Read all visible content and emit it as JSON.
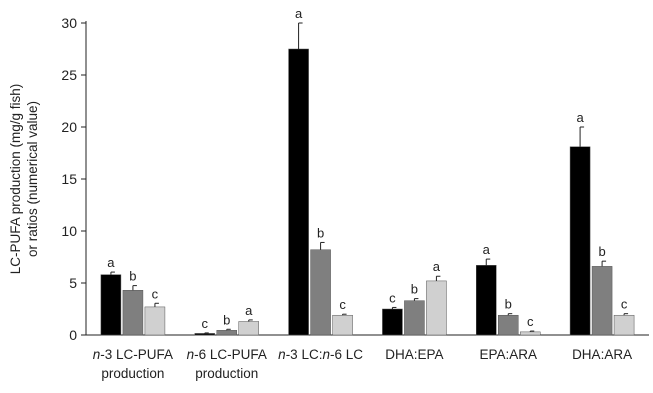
{
  "chart_data": {
    "type": "bar",
    "ylabel_lines": [
      "LC-PUFA production (mg/g fish)",
      "or ratios (numerical value)"
    ],
    "ylim": [
      0,
      30
    ],
    "yticks": [
      0,
      5,
      10,
      15,
      20,
      25,
      30
    ],
    "categories": [
      {
        "prefix": "n",
        "line1": "-3 LC-PUFA",
        "line2": "production"
      },
      {
        "prefix": "n",
        "line1": "-6 LC-PUFA",
        "line2": "production"
      },
      {
        "prefix": "n",
        "line1": "-3 LC:",
        "prefix2": "n",
        "line1b": "-6 LC",
        "line2": ""
      },
      {
        "prefix": "",
        "line1": "DHA:EPA",
        "line2": ""
      },
      {
        "prefix": "",
        "line1": "EPA:ARA",
        "line2": ""
      },
      {
        "prefix": "",
        "line1": "DHA:ARA",
        "line2": ""
      }
    ],
    "series": [
      {
        "color": "#000000",
        "values": [
          5.8,
          0.15,
          27.5,
          2.5,
          6.7,
          18.1
        ],
        "errors": [
          0.25,
          0.05,
          2.5,
          0.15,
          0.6,
          1.9
        ],
        "letters": [
          "a",
          "c",
          "a",
          "c",
          "a",
          "a"
        ]
      },
      {
        "color": "#7f7f7f",
        "values": [
          4.3,
          0.45,
          8.2,
          3.3,
          1.9,
          6.6
        ],
        "errors": [
          0.45,
          0.1,
          0.7,
          0.2,
          0.15,
          0.5
        ],
        "letters": [
          "b",
          "b",
          "b",
          "b",
          "b",
          "b"
        ]
      },
      {
        "color": "#d0d0d0",
        "values": [
          2.7,
          1.3,
          1.9,
          5.2,
          0.3,
          1.9
        ],
        "errors": [
          0.35,
          0.15,
          0.1,
          0.45,
          0.08,
          0.15
        ],
        "letters": [
          "c",
          "a",
          "c",
          "a",
          "c",
          "c"
        ]
      }
    ]
  }
}
